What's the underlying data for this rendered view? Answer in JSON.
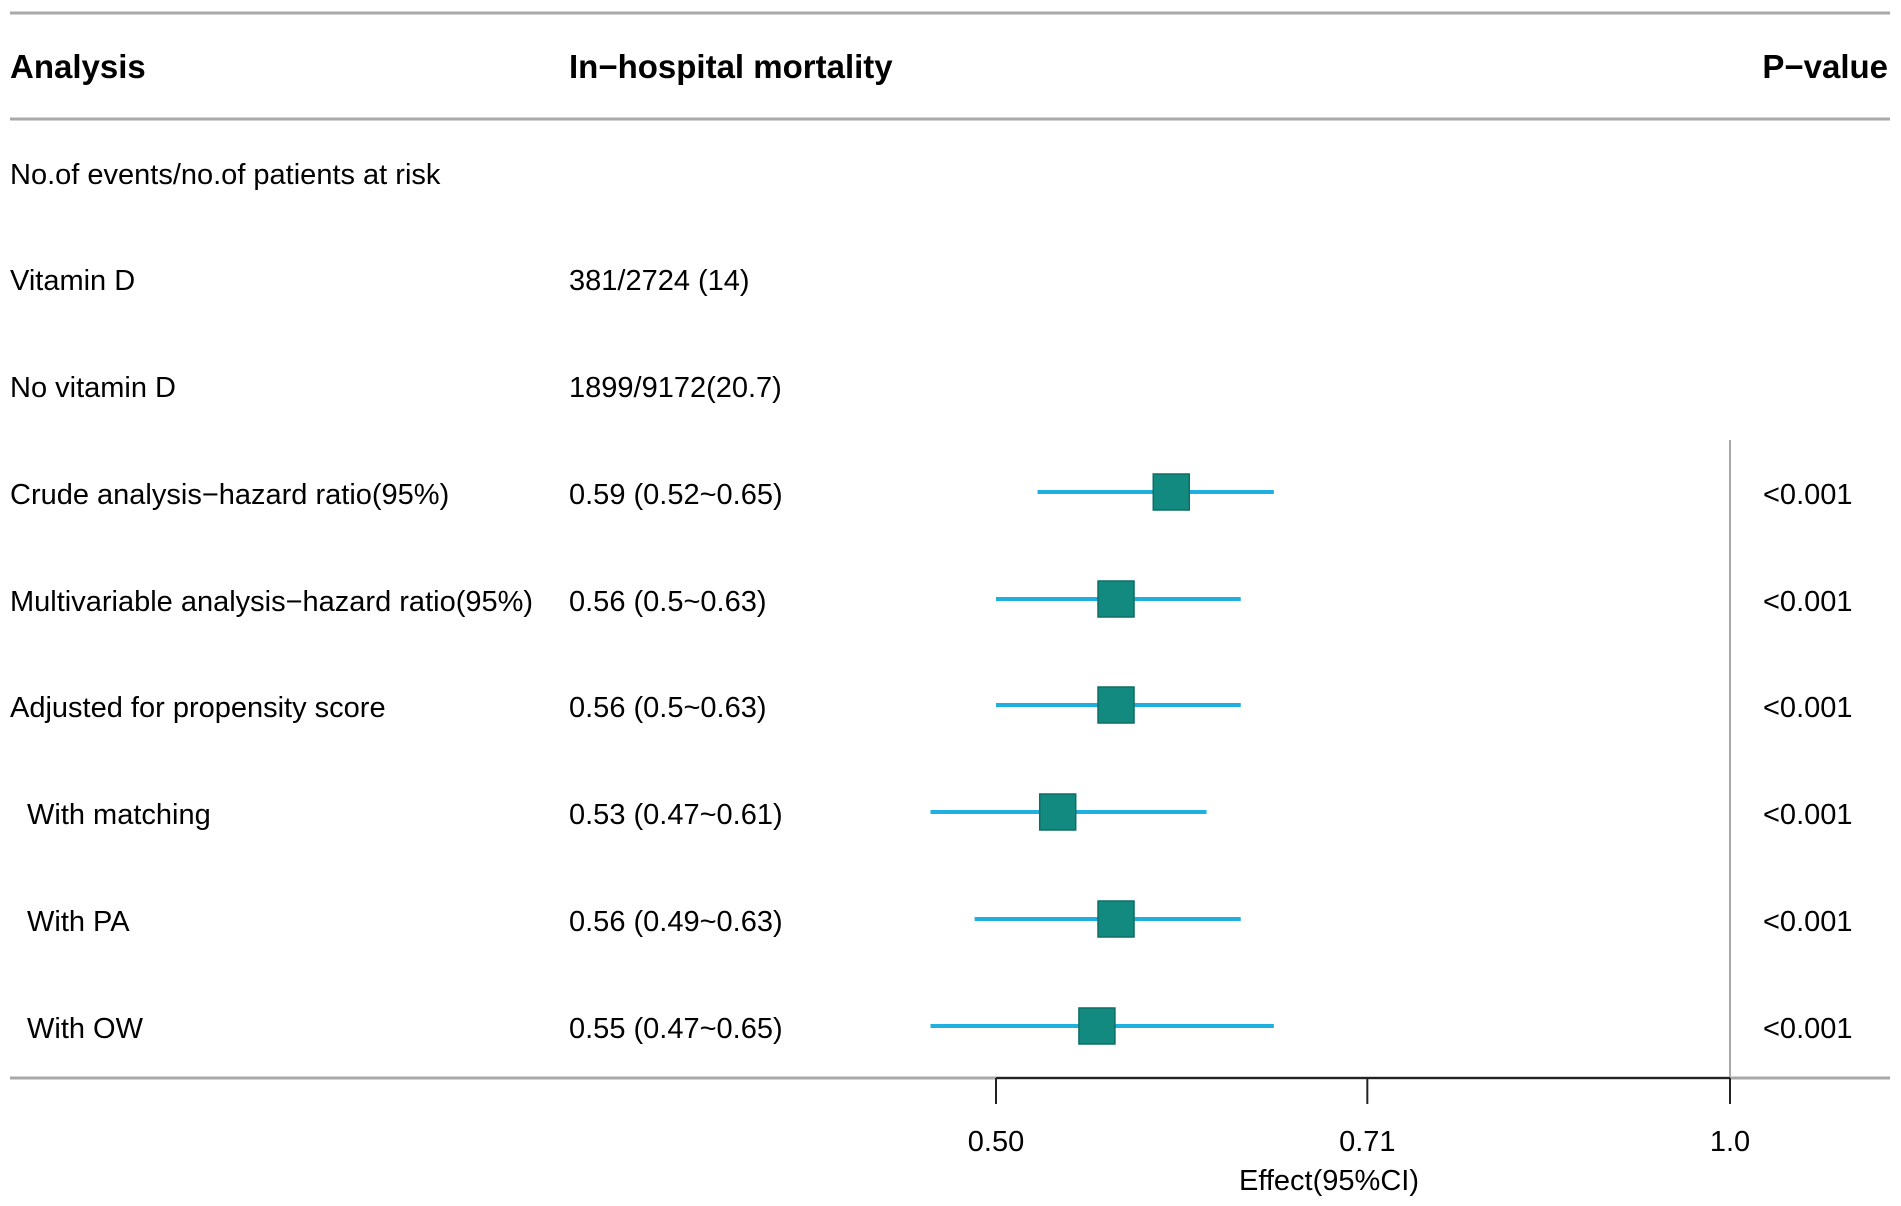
{
  "chart_data": {
    "type": "forest",
    "columns": {
      "analysis": "Analysis",
      "estimate": "In−hospital mortality",
      "pvalue": "P−value"
    },
    "rows": [
      {
        "label": "No.of events/no.of patients at risk",
        "estimate_text": "",
        "p": "",
        "indent": false,
        "point": null,
        "lower": null,
        "upper": null
      },
      {
        "label": "Vitamin D",
        "estimate_text": "381/2724 (14)",
        "p": "",
        "indent": false,
        "point": null,
        "lower": null,
        "upper": null
      },
      {
        "label": "No vitamin D",
        "estimate_text": "1899/9172(20.7)",
        "p": "",
        "indent": false,
        "point": null,
        "lower": null,
        "upper": null
      },
      {
        "label": "Crude analysis−hazard ratio(95%)",
        "estimate_text": "0.59 (0.52~0.65)",
        "p": "<0.001",
        "indent": false,
        "point": 0.59,
        "lower": 0.52,
        "upper": 0.65
      },
      {
        "label": "Multivariable analysis−hazard ratio(95%)",
        "estimate_text": "0.56 (0.5~0.63)",
        "p": "<0.001",
        "indent": false,
        "point": 0.56,
        "lower": 0.5,
        "upper": 0.63
      },
      {
        "label": "Adjusted for propensity score",
        "estimate_text": "0.56 (0.5~0.63)",
        "p": "<0.001",
        "indent": false,
        "point": 0.56,
        "lower": 0.5,
        "upper": 0.63
      },
      {
        "label": "With matching",
        "estimate_text": "0.53 (0.47~0.61)",
        "p": "<0.001",
        "indent": true,
        "point": 0.53,
        "lower": 0.47,
        "upper": 0.61
      },
      {
        "label": "With PA",
        "estimate_text": "0.56 (0.49~0.63)",
        "p": "<0.001",
        "indent": true,
        "point": 0.56,
        "lower": 0.49,
        "upper": 0.63
      },
      {
        "label": "With OW",
        "estimate_text": "0.55 (0.47~0.65)",
        "p": "<0.001",
        "indent": true,
        "point": 0.55,
        "lower": 0.47,
        "upper": 0.65
      }
    ],
    "x_axis": {
      "scale": "log",
      "ticks": [
        0.5,
        0.71,
        1.0
      ],
      "tick_labels": [
        "0.50",
        "0.71",
        "1.0"
      ],
      "reference_line": 1.0,
      "label": "Effect(95%CI)",
      "xlim": [
        0.5,
        1.0
      ]
    },
    "colors": {
      "ci_line": "#1fb0e0",
      "box": "#138a80",
      "box_border": "#0d6e66",
      "rule": "#a9a9a9",
      "axis": "#222222",
      "text": "#111111"
    }
  }
}
